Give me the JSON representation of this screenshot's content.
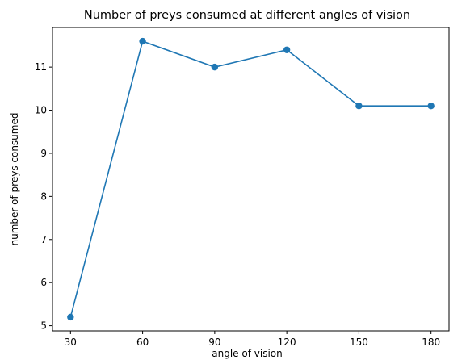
{
  "chart_data": {
    "type": "line",
    "title": "Number of preys consumed at different angles of vision",
    "xlabel": "angle of vision",
    "ylabel": "number of preys consumed",
    "x": [
      30,
      60,
      90,
      120,
      150,
      180
    ],
    "series": [
      {
        "values": [
          5.2,
          11.6,
          11.0,
          11.4,
          10.1,
          10.1
        ],
        "color": "#1f77b4",
        "marker": "circle"
      }
    ],
    "xticks": [
      30,
      60,
      90,
      120,
      150,
      180
    ],
    "yticks": [
      5,
      6,
      7,
      8,
      9,
      10,
      11
    ],
    "xlim": [
      22.5,
      187.5
    ],
    "ylim": [
      4.88,
      11.92
    ],
    "grid": false,
    "legend": "none"
  }
}
